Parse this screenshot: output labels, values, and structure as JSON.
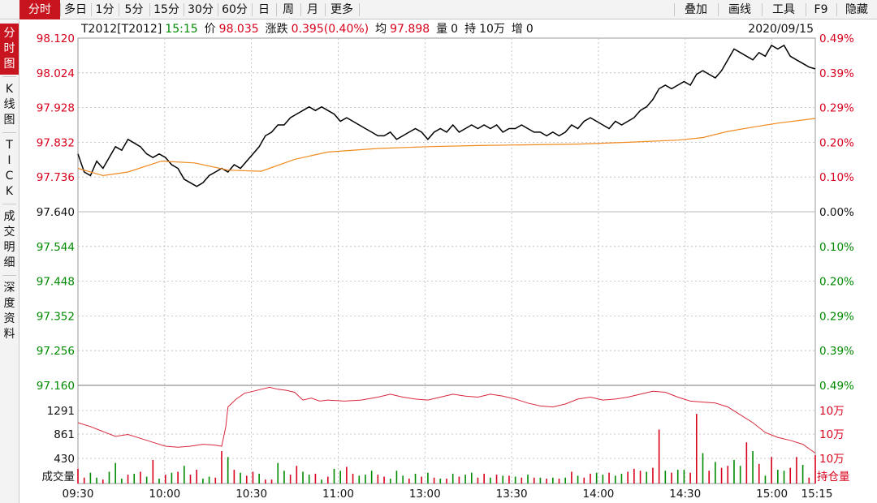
{
  "toolbar": {
    "left_items": [
      "分时",
      "多日",
      "1分",
      "5分",
      "15分",
      "30分",
      "60分",
      "日",
      "周",
      "月",
      "更多"
    ],
    "active_index": 0,
    "right_items": [
      "叠加",
      "画线",
      "工具",
      "F9",
      "隐藏"
    ]
  },
  "side_tabs": [
    {
      "label": "分\n时\n图",
      "active": true
    },
    {
      "label": "K\n线\n图",
      "active": false
    },
    {
      "label": "T\nI\nC\nK",
      "active": false
    },
    {
      "label": "成\n交\n明\n细",
      "active": false
    },
    {
      "label": "深\n度\n资\n料",
      "active": false
    }
  ],
  "info_bar": {
    "symbol": "T2012[T2012]",
    "time": "15:15",
    "price_label": "价",
    "price": "98.035",
    "change_label": "涨跌",
    "change": "0.395(0.40%)",
    "avg_label": "均",
    "avg": "97.898",
    "vol_label": "量",
    "vol": "0",
    "hold_label": "持",
    "hold": "10万",
    "inc_label": "增",
    "inc": "0",
    "date": "2020/09/15"
  },
  "colors": {
    "up": "#d8001c",
    "down": "#008a00",
    "price_line": "#000000",
    "avg_line": "#f08a1e",
    "oi_line": "#d8283c",
    "grid": "#b8b8b8",
    "active_tab": "#c8141e"
  },
  "chart_data": {
    "type": "line",
    "x_ticks": [
      "09:30",
      "10:00",
      "10:30",
      "11:00",
      "13:00",
      "13:30",
      "14:00",
      "14:30",
      "15:00",
      "15:15"
    ],
    "price_axis": {
      "min": 97.16,
      "max": 98.12,
      "base": 97.64,
      "left_labels": [
        "98.120",
        "98.024",
        "97.928",
        "97.832",
        "97.736",
        "97.640",
        "97.544",
        "97.448",
        "97.352",
        "97.256",
        "97.160"
      ],
      "right_labels": [
        "0.49%",
        "0.39%",
        "0.29%",
        "0.20%",
        "0.10%",
        "0.00%",
        "0.10%",
        "0.20%",
        "0.29%",
        "0.39%",
        "0.49%"
      ]
    },
    "volume_axis": {
      "left_labels": [
        "1291",
        "861",
        "430"
      ],
      "left_bottom_label": "成交量",
      "right_labels": [
        "10万",
        "10万",
        "10万"
      ],
      "right_bottom_label": "持仓量"
    },
    "price_series": [
      [
        0,
        97.8
      ],
      [
        1.5,
        97.75
      ],
      [
        3,
        97.74
      ],
      [
        4.5,
        97.78
      ],
      [
        6,
        97.76
      ],
      [
        7.5,
        97.79
      ],
      [
        9,
        97.82
      ],
      [
        10.5,
        97.81
      ],
      [
        12,
        97.84
      ],
      [
        13.5,
        97.83
      ],
      [
        15,
        97.82
      ],
      [
        16.5,
        97.8
      ],
      [
        18,
        97.79
      ],
      [
        19.5,
        97.8
      ],
      [
        21,
        97.79
      ],
      [
        22.5,
        97.77
      ],
      [
        24,
        97.76
      ],
      [
        25.5,
        97.73
      ],
      [
        27,
        97.72
      ],
      [
        28.5,
        97.71
      ],
      [
        30,
        97.72
      ],
      [
        31.5,
        97.74
      ],
      [
        33,
        97.75
      ],
      [
        34.5,
        97.76
      ],
      [
        36,
        97.75
      ],
      [
        37.5,
        97.77
      ],
      [
        39,
        97.76
      ],
      [
        40.5,
        97.78
      ],
      [
        42,
        97.8
      ],
      [
        43.5,
        97.82
      ],
      [
        45,
        97.85
      ],
      [
        46.5,
        97.86
      ],
      [
        48,
        97.88
      ],
      [
        49.5,
        97.88
      ],
      [
        51,
        97.9
      ],
      [
        52.5,
        97.91
      ],
      [
        54,
        97.92
      ],
      [
        55.5,
        97.93
      ],
      [
        57,
        97.92
      ],
      [
        58.5,
        97.93
      ],
      [
        60,
        97.92
      ],
      [
        61.5,
        97.91
      ],
      [
        63,
        97.89
      ],
      [
        64.5,
        97.9
      ],
      [
        66,
        97.89
      ],
      [
        67.5,
        97.88
      ],
      [
        69,
        97.87
      ],
      [
        70.5,
        97.86
      ],
      [
        72,
        97.85
      ],
      [
        73.5,
        97.85
      ],
      [
        75,
        97.86
      ],
      [
        76.5,
        97.84
      ],
      [
        78,
        97.85
      ],
      [
        79.5,
        97.86
      ],
      [
        81,
        97.87
      ],
      [
        82.5,
        97.86
      ],
      [
        84,
        97.84
      ],
      [
        85.5,
        97.86
      ],
      [
        87,
        97.87
      ],
      [
        88.5,
        97.86
      ],
      [
        90,
        97.88
      ],
      [
        91.5,
        97.86
      ],
      [
        93,
        97.87
      ],
      [
        94.5,
        97.88
      ],
      [
        96,
        97.87
      ],
      [
        97.5,
        97.88
      ],
      [
        99,
        97.87
      ],
      [
        100.5,
        97.88
      ],
      [
        102,
        97.86
      ],
      [
        103.5,
        97.87
      ],
      [
        105,
        97.87
      ],
      [
        106.5,
        97.88
      ],
      [
        108,
        97.87
      ],
      [
        109.5,
        97.86
      ],
      [
        111,
        97.86
      ],
      [
        112.5,
        97.85
      ],
      [
        114,
        97.86
      ],
      [
        115.5,
        97.85
      ],
      [
        117,
        97.86
      ],
      [
        118.5,
        97.88
      ],
      [
        120,
        97.87
      ],
      [
        121.5,
        97.89
      ],
      [
        123,
        97.9
      ],
      [
        124.5,
        97.89
      ],
      [
        126,
        97.88
      ],
      [
        127.5,
        97.87
      ],
      [
        129,
        97.89
      ],
      [
        130.5,
        97.88
      ],
      [
        132,
        97.89
      ],
      [
        133.5,
        97.9
      ],
      [
        135,
        97.92
      ],
      [
        136.5,
        97.93
      ],
      [
        138,
        97.95
      ],
      [
        139.5,
        97.98
      ],
      [
        141,
        97.99
      ],
      [
        142.5,
        97.98
      ],
      [
        144,
        97.99
      ],
      [
        145.5,
        98.0
      ],
      [
        147,
        97.99
      ],
      [
        148.5,
        98.02
      ],
      [
        150,
        98.03
      ],
      [
        151.5,
        98.02
      ],
      [
        153,
        98.01
      ],
      [
        154.5,
        98.03
      ],
      [
        156,
        98.06
      ],
      [
        157.5,
        98.09
      ],
      [
        159,
        98.08
      ],
      [
        160.5,
        98.07
      ],
      [
        162,
        98.06
      ],
      [
        163.5,
        98.08
      ],
      [
        165,
        98.07
      ],
      [
        166.5,
        98.1
      ],
      [
        168,
        98.09
      ],
      [
        169.5,
        98.1
      ],
      [
        171,
        98.07
      ],
      [
        172.5,
        98.06
      ],
      [
        174,
        98.05
      ],
      [
        175.5,
        98.04
      ],
      [
        177,
        98.035
      ]
    ],
    "avg_series": [
      [
        0,
        97.76
      ],
      [
        6,
        97.74
      ],
      [
        12,
        97.75
      ],
      [
        20,
        97.78
      ],
      [
        28,
        97.775
      ],
      [
        36,
        97.755
      ],
      [
        44,
        97.752
      ],
      [
        52,
        97.785
      ],
      [
        60,
        97.805
      ],
      [
        72,
        97.815
      ],
      [
        84,
        97.82
      ],
      [
        96,
        97.823
      ],
      [
        108,
        97.825
      ],
      [
        120,
        97.827
      ],
      [
        132,
        97.832
      ],
      [
        144,
        97.838
      ],
      [
        150,
        97.845
      ],
      [
        156,
        97.862
      ],
      [
        162,
        97.874
      ],
      [
        168,
        97.885
      ],
      [
        177,
        97.898
      ]
    ],
    "volume_bars": [
      [
        0,
        0.15,
        "up"
      ],
      [
        1.5,
        0.06,
        "up"
      ],
      [
        3,
        0.11,
        "down"
      ],
      [
        4.5,
        0.06,
        "down"
      ],
      [
        6,
        0.04,
        "up"
      ],
      [
        7.5,
        0.12,
        "down"
      ],
      [
        9,
        0.21,
        "down"
      ],
      [
        10.5,
        0.05,
        "down"
      ],
      [
        12,
        0.09,
        "up"
      ],
      [
        13.5,
        0.1,
        "down"
      ],
      [
        15,
        0.12,
        "up"
      ],
      [
        16.5,
        0.07,
        "down"
      ],
      [
        18,
        0.24,
        "up"
      ],
      [
        19.5,
        0.05,
        "down"
      ],
      [
        21,
        0.09,
        "up"
      ],
      [
        22.5,
        0.11,
        "down"
      ],
      [
        24,
        0.12,
        "up"
      ],
      [
        25.5,
        0.18,
        "down"
      ],
      [
        27,
        0.09,
        "up"
      ],
      [
        28.5,
        0.14,
        "up"
      ],
      [
        30,
        0.05,
        "down"
      ],
      [
        31.5,
        0.07,
        "down"
      ],
      [
        33,
        0.06,
        "up"
      ],
      [
        34.5,
        0.33,
        "up"
      ],
      [
        36,
        0.27,
        "down"
      ],
      [
        37.5,
        0.14,
        "up"
      ],
      [
        39,
        0.11,
        "down"
      ],
      [
        40.5,
        0.08,
        "up"
      ],
      [
        42,
        0.12,
        "up"
      ],
      [
        43.5,
        0.1,
        "down"
      ],
      [
        45,
        0.04,
        "up"
      ],
      [
        46.5,
        0.04,
        "up"
      ],
      [
        48,
        0.21,
        "down"
      ],
      [
        49.5,
        0.13,
        "down"
      ],
      [
        51,
        0.09,
        "up"
      ],
      [
        52.5,
        0.18,
        "up"
      ],
      [
        54,
        0.12,
        "down"
      ],
      [
        55.5,
        0.09,
        "down"
      ],
      [
        57,
        0.1,
        "up"
      ],
      [
        58.5,
        0.04,
        "down"
      ],
      [
        60,
        0.07,
        "up"
      ],
      [
        61.5,
        0.15,
        "down"
      ],
      [
        63,
        0.13,
        "down"
      ],
      [
        64.5,
        0.17,
        "up"
      ],
      [
        66,
        0.1,
        "up"
      ],
      [
        67.5,
        0.08,
        "down"
      ],
      [
        69,
        0.09,
        "down"
      ],
      [
        70.5,
        0.13,
        "down"
      ],
      [
        72,
        0.09,
        "up"
      ],
      [
        73.5,
        0.07,
        "up"
      ],
      [
        75,
        0.05,
        "down"
      ],
      [
        76.5,
        0.13,
        "down"
      ],
      [
        78,
        0.08,
        "down"
      ],
      [
        79.5,
        0.05,
        "up"
      ],
      [
        81,
        0.1,
        "down"
      ],
      [
        82.5,
        0.07,
        "up"
      ],
      [
        84,
        0.11,
        "down"
      ],
      [
        85.5,
        0.06,
        "up"
      ],
      [
        87,
        0.05,
        "down"
      ],
      [
        88.5,
        0.05,
        "up"
      ],
      [
        90,
        0.1,
        "down"
      ],
      [
        91.5,
        0.07,
        "up"
      ],
      [
        93,
        0.09,
        "down"
      ],
      [
        94.5,
        0.11,
        "down"
      ],
      [
        96,
        0.06,
        "up"
      ],
      [
        97.5,
        0.1,
        "up"
      ],
      [
        99,
        0.06,
        "down"
      ],
      [
        100.5,
        0.09,
        "up"
      ],
      [
        102,
        0.08,
        "down"
      ],
      [
        103.5,
        0.08,
        "up"
      ],
      [
        105,
        0.07,
        "down"
      ],
      [
        106.5,
        0.06,
        "up"
      ],
      [
        108,
        0.09,
        "down"
      ],
      [
        109.5,
        0.06,
        "up"
      ],
      [
        111,
        0.06,
        "down"
      ],
      [
        112.5,
        0.05,
        "up"
      ],
      [
        114,
        0.06,
        "down"
      ],
      [
        115.5,
        0.05,
        "up"
      ],
      [
        117,
        0.06,
        "down"
      ],
      [
        118.5,
        0.12,
        "up"
      ],
      [
        120,
        0.08,
        "down"
      ],
      [
        121.5,
        0.06,
        "up"
      ],
      [
        123,
        0.1,
        "up"
      ],
      [
        124.5,
        0.11,
        "down"
      ],
      [
        126,
        0.09,
        "down"
      ],
      [
        127.5,
        0.11,
        "up"
      ],
      [
        129,
        0.08,
        "down"
      ],
      [
        130.5,
        0.1,
        "down"
      ],
      [
        132,
        0.12,
        "up"
      ],
      [
        133.5,
        0.15,
        "up"
      ],
      [
        135,
        0.13,
        "up"
      ],
      [
        136.5,
        0.12,
        "down"
      ],
      [
        138,
        0.16,
        "up"
      ],
      [
        139.5,
        0.55,
        "up"
      ],
      [
        141,
        0.13,
        "down"
      ],
      [
        142.5,
        0.11,
        "up"
      ],
      [
        144,
        0.14,
        "down"
      ],
      [
        145.5,
        0.14,
        "down"
      ],
      [
        147,
        0.11,
        "up"
      ],
      [
        148.5,
        0.71,
        "up"
      ],
      [
        150,
        0.31,
        "down"
      ],
      [
        151.5,
        0.13,
        "up"
      ],
      [
        153,
        0.22,
        "down"
      ],
      [
        154.5,
        0.16,
        "up"
      ],
      [
        156,
        0.18,
        "up"
      ],
      [
        157.5,
        0.24,
        "down"
      ],
      [
        159,
        0.18,
        "down"
      ],
      [
        160.5,
        0.42,
        "up"
      ],
      [
        162,
        0.33,
        "down"
      ],
      [
        163.5,
        0.2,
        "up"
      ],
      [
        165,
        0.08,
        "down"
      ],
      [
        166.5,
        0.27,
        "up"
      ],
      [
        168,
        0.14,
        "down"
      ],
      [
        169.5,
        0.13,
        "down"
      ],
      [
        171,
        0.16,
        "up"
      ],
      [
        172.5,
        0.27,
        "up"
      ],
      [
        174,
        0.19,
        "down"
      ],
      [
        175.5,
        0.06,
        "up"
      ],
      [
        177,
        0.29,
        "up"
      ]
    ],
    "oi_series": [
      [
        0,
        0.62
      ],
      [
        3,
        0.58
      ],
      [
        6,
        0.53
      ],
      [
        9,
        0.48
      ],
      [
        12,
        0.5
      ],
      [
        15,
        0.46
      ],
      [
        18,
        0.42
      ],
      [
        21,
        0.38
      ],
      [
        24,
        0.37
      ],
      [
        27,
        0.38
      ],
      [
        30,
        0.4
      ],
      [
        33,
        0.39
      ],
      [
        34.5,
        0.38
      ],
      [
        35.5,
        0.58
      ],
      [
        36,
        0.78
      ],
      [
        38,
        0.86
      ],
      [
        40,
        0.92
      ],
      [
        42,
        0.94
      ],
      [
        44,
        0.96
      ],
      [
        46,
        0.98
      ],
      [
        48,
        0.96
      ],
      [
        50,
        0.95
      ],
      [
        52,
        0.93
      ],
      [
        54,
        0.85
      ],
      [
        56,
        0.87
      ],
      [
        58,
        0.84
      ],
      [
        60,
        0.85
      ],
      [
        64,
        0.84
      ],
      [
        68,
        0.85
      ],
      [
        72,
        0.88
      ],
      [
        75,
        0.91
      ],
      [
        78,
        0.88
      ],
      [
        81,
        0.86
      ],
      [
        84,
        0.85
      ],
      [
        87,
        0.88
      ],
      [
        90,
        0.91
      ],
      [
        93,
        0.89
      ],
      [
        96,
        0.88
      ],
      [
        99,
        0.91
      ],
      [
        102,
        0.89
      ],
      [
        105,
        0.86
      ],
      [
        108,
        0.82
      ],
      [
        111,
        0.79
      ],
      [
        114,
        0.78
      ],
      [
        117,
        0.81
      ],
      [
        120,
        0.86
      ],
      [
        123,
        0.88
      ],
      [
        126,
        0.85
      ],
      [
        129,
        0.86
      ],
      [
        132,
        0.88
      ],
      [
        135,
        0.91
      ],
      [
        138,
        0.94
      ],
      [
        141,
        0.93
      ],
      [
        144,
        0.88
      ],
      [
        147,
        0.84
      ],
      [
        150,
        0.83
      ],
      [
        153,
        0.82
      ],
      [
        156,
        0.78
      ],
      [
        159,
        0.7
      ],
      [
        162,
        0.62
      ],
      [
        165,
        0.52
      ],
      [
        168,
        0.47
      ],
      [
        171,
        0.44
      ],
      [
        174,
        0.4
      ],
      [
        176,
        0.34
      ],
      [
        177,
        0.31
      ]
    ]
  }
}
